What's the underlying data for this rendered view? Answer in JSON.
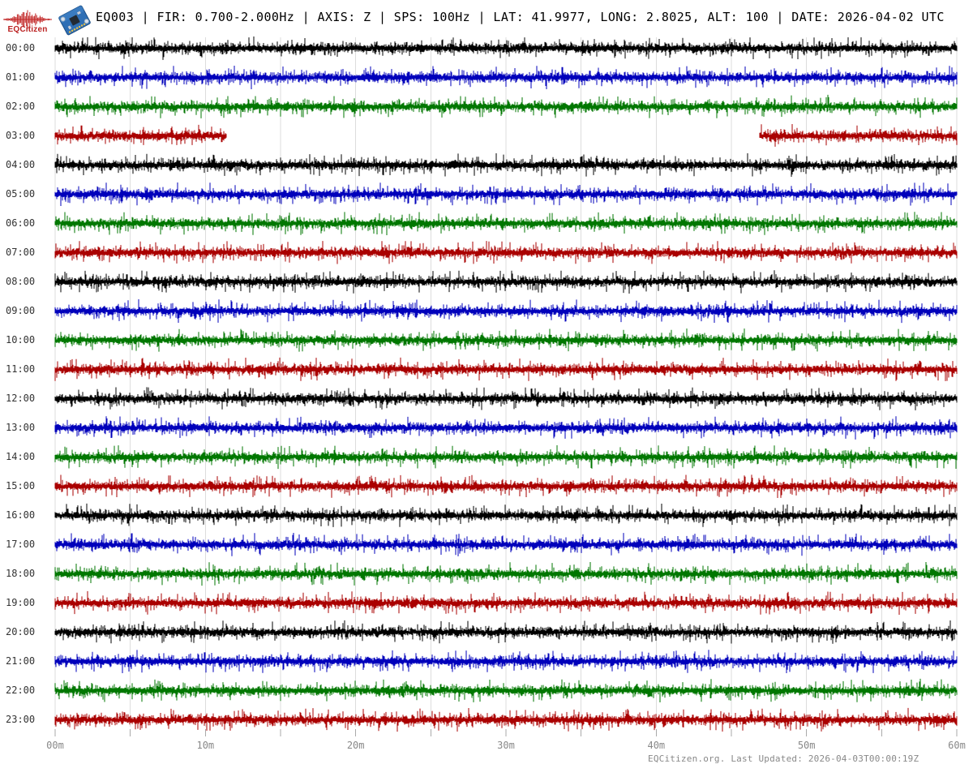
{
  "header": {
    "logo_text": "EQCitizen",
    "title": "EQ003 | FIR: 0.700-2.000Hz | AXIS: Z | SPS: 100Hz | LAT: 41.9977, LONG: 2.8025, ALT: 100 | DATE: 2026-04-02 UTC",
    "station_id": "EQ003",
    "filter": "0.700-2.000Hz",
    "axis": "Z",
    "sps": "100Hz",
    "lat": "41.9977",
    "long": "2.8025",
    "alt": "100",
    "date": "2026-04-02 UTC"
  },
  "footer": {
    "credit": "EQCitizen.org. Last Updated: 2026-04-03T00:00:19Z"
  },
  "chart_data": {
    "type": "helicorder-seismogram",
    "title": "EQ003 | FIR: 0.700-2.000Hz | AXIS: Z | SPS: 100Hz | LAT: 41.9977, LONG: 2.8025, ALT: 100 | DATE: 2026-04-02 UTC",
    "x_axis": {
      "unit": "minutes",
      "range": [
        0,
        60
      ],
      "major_tick_minutes": [
        0,
        10,
        20,
        30,
        40,
        50,
        60
      ],
      "major_tick_labels": [
        "00m",
        "10m",
        "20m",
        "30m",
        "40m",
        "50m",
        "60m"
      ],
      "minor_tick_interval_minutes": 5,
      "grid": true,
      "grid_color": "#dddddd",
      "tick_color": "#aaaaaa"
    },
    "color_cycle": [
      "#000000",
      "#0000BB",
      "#007700",
      "#AA0000"
    ],
    "rows": [
      {
        "label": "00:00",
        "color": "#000000",
        "segments": [
          [
            0,
            60
          ]
        ]
      },
      {
        "label": "01:00",
        "color": "#0000BB",
        "segments": [
          [
            0,
            60
          ]
        ]
      },
      {
        "label": "02:00",
        "color": "#007700",
        "segments": [
          [
            0,
            60
          ]
        ]
      },
      {
        "label": "03:00",
        "color": "#AA0000",
        "segments": [
          [
            0,
            11.4
          ],
          [
            46.9,
            60
          ]
        ]
      },
      {
        "label": "04:00",
        "color": "#000000",
        "segments": [
          [
            0,
            60
          ]
        ]
      },
      {
        "label": "05:00",
        "color": "#0000BB",
        "segments": [
          [
            0,
            60
          ]
        ]
      },
      {
        "label": "06:00",
        "color": "#007700",
        "segments": [
          [
            0,
            60
          ]
        ]
      },
      {
        "label": "07:00",
        "color": "#AA0000",
        "segments": [
          [
            0,
            60
          ]
        ]
      },
      {
        "label": "08:00",
        "color": "#000000",
        "segments": [
          [
            0,
            60
          ]
        ]
      },
      {
        "label": "09:00",
        "color": "#0000BB",
        "segments": [
          [
            0,
            60
          ]
        ]
      },
      {
        "label": "10:00",
        "color": "#007700",
        "segments": [
          [
            0,
            60
          ]
        ]
      },
      {
        "label": "11:00",
        "color": "#AA0000",
        "segments": [
          [
            0,
            60
          ]
        ]
      },
      {
        "label": "12:00",
        "color": "#000000",
        "segments": [
          [
            0,
            60
          ]
        ]
      },
      {
        "label": "13:00",
        "color": "#0000BB",
        "segments": [
          [
            0,
            60
          ]
        ]
      },
      {
        "label": "14:00",
        "color": "#007700",
        "segments": [
          [
            0,
            60
          ]
        ]
      },
      {
        "label": "15:00",
        "color": "#AA0000",
        "segments": [
          [
            0,
            60
          ]
        ]
      },
      {
        "label": "16:00",
        "color": "#000000",
        "segments": [
          [
            0,
            60
          ]
        ]
      },
      {
        "label": "17:00",
        "color": "#0000BB",
        "segments": [
          [
            0,
            60
          ]
        ]
      },
      {
        "label": "18:00",
        "color": "#007700",
        "segments": [
          [
            0,
            60
          ]
        ]
      },
      {
        "label": "19:00",
        "color": "#AA0000",
        "segments": [
          [
            0,
            60
          ]
        ]
      },
      {
        "label": "20:00",
        "color": "#000000",
        "segments": [
          [
            0,
            60
          ]
        ]
      },
      {
        "label": "21:00",
        "color": "#0000BB",
        "segments": [
          [
            0,
            60
          ]
        ]
      },
      {
        "label": "22:00",
        "color": "#007700",
        "segments": [
          [
            0,
            60
          ]
        ]
      },
      {
        "label": "23:00",
        "color": "#AA0000",
        "segments": [
          [
            0,
            60
          ]
        ]
      }
    ],
    "description": "24-hour helicorder, one trace row per hour, continuous ambient noise; data gap in 03:00 row between ~11.4m and ~46.9m"
  }
}
